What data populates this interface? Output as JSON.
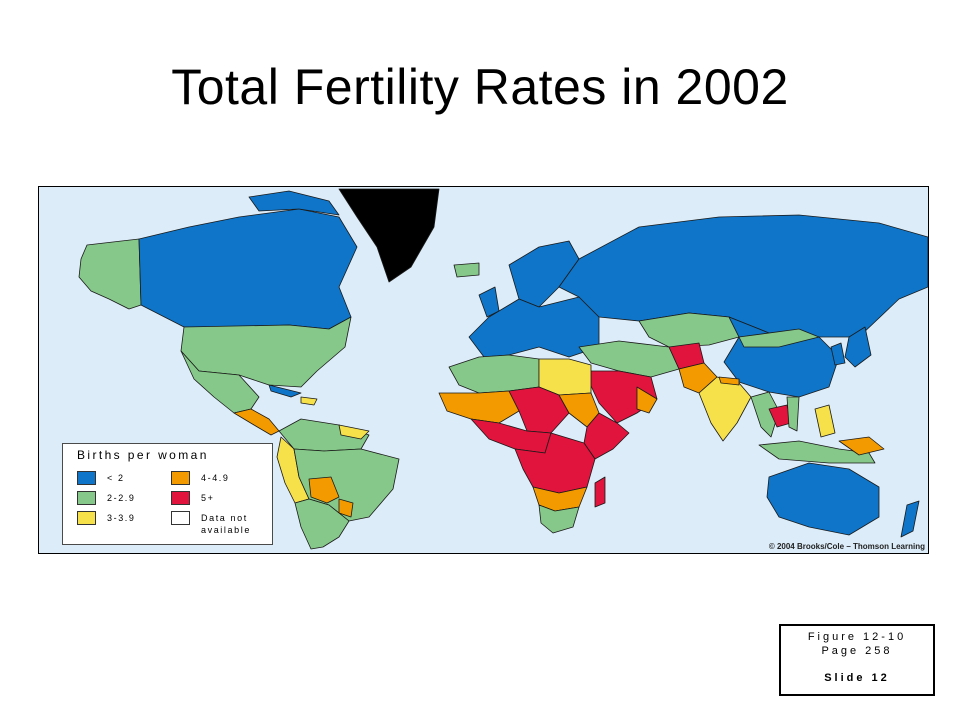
{
  "title": "Total Fertility Rates in 2002",
  "legend": {
    "title": "Births per woman",
    "items": [
      {
        "label": "< 2",
        "color": "#0f75c8"
      },
      {
        "label": "4-4.9",
        "color": "#f39a00"
      },
      {
        "label": "2-2.9",
        "color": "#86c889"
      },
      {
        "label": "5+",
        "color": "#e0143c"
      },
      {
        "label": "3-3.9",
        "color": "#f6e14a"
      },
      {
        "label": "Data not available",
        "color": "#ffffff"
      }
    ]
  },
  "colors": {
    "ocean": "#dcecf8",
    "low": "#0f75c8",
    "replacement": "#86c889",
    "moderate": "#f6e14a",
    "high": "#f39a00",
    "very_high": "#e0143c",
    "no_data": "#ffffff"
  },
  "copyright": "© 2004 Brooks/Cole – Thomson Learning",
  "figure_caption": {
    "line1": "Figure 12-10",
    "line2": "Page 258",
    "line3": "Slide 12"
  }
}
